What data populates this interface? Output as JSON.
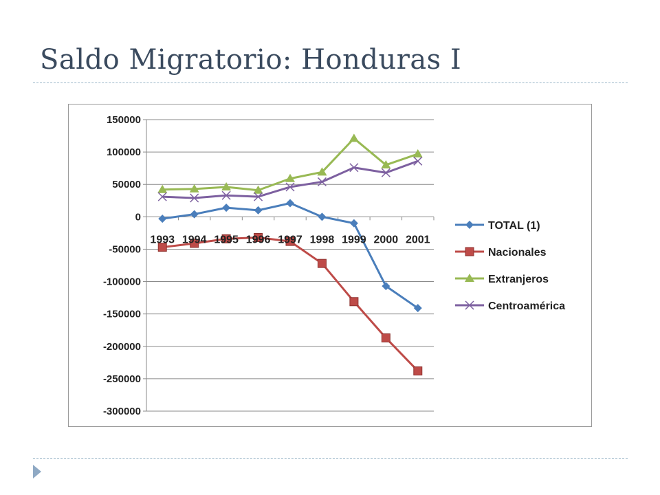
{
  "slide": {
    "title": "Saldo Migratorio: Honduras I"
  },
  "icons": {
    "bullet": "triangle-right-icon"
  },
  "colors": {
    "title": "#3a4a5e",
    "rule": "#9ab6c8",
    "bullet": "#8fa9c4"
  },
  "chart_data": {
    "type": "line",
    "title": "",
    "xlabel": "",
    "ylabel": "",
    "categories": [
      "1993",
      "1994",
      "1995",
      "1996",
      "1997",
      "1998",
      "1999",
      "2000",
      "2001"
    ],
    "ylim": [
      -300000,
      150000
    ],
    "yticks": [
      150000,
      100000,
      50000,
      0,
      -50000,
      -100000,
      -150000,
      -200000,
      -250000,
      -300000
    ],
    "grid": true,
    "legend_position": "right",
    "series": [
      {
        "name": "TOTAL (1)",
        "color": "#4a7ebb",
        "marker": "diamond",
        "values": [
          -3000,
          4000,
          14000,
          10000,
          21000,
          0,
          -10000,
          -107000,
          -141000
        ]
      },
      {
        "name": "Nacionales",
        "color": "#be4b48",
        "marker": "square",
        "values": [
          -47000,
          -41000,
          -34000,
          -32000,
          -38000,
          -72000,
          -131000,
          -187000,
          -238000
        ]
      },
      {
        "name": "Extranjeros",
        "color": "#98b954",
        "marker": "triangle",
        "values": [
          42000,
          43000,
          46000,
          41000,
          59000,
          69000,
          121000,
          80000,
          97000
        ]
      },
      {
        "name": "Centroamérica",
        "color": "#7d60a0",
        "marker": "x",
        "values": [
          31000,
          29000,
          33000,
          31000,
          46000,
          54000,
          76000,
          68000,
          86000
        ]
      }
    ]
  }
}
